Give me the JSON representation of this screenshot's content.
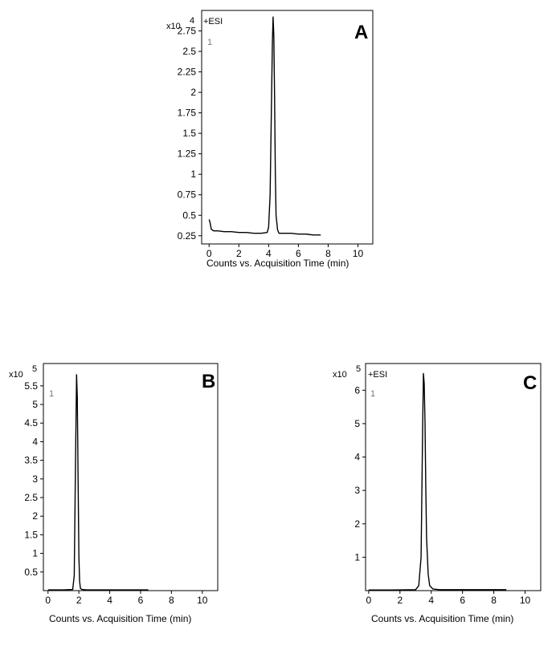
{
  "chart_data": [
    {
      "type": "line",
      "panel": "A",
      "mode_label": "+ESI",
      "scale_base": "x10",
      "scale_exp": "4",
      "trace_label": "1",
      "xlabel": "Counts vs. Acquisition Time (min)",
      "xlim": [
        -0.5,
        11
      ],
      "ylim": [
        0.15,
        3.0
      ],
      "x_ticks": [
        0,
        2,
        4,
        6,
        8,
        10
      ],
      "y_ticks": [
        0.25,
        0.5,
        0.75,
        1,
        1.25,
        1.5,
        1.75,
        2,
        2.25,
        2.5,
        2.75
      ],
      "y_tick_labels": [
        "0.25",
        "0.5",
        "0.75",
        "1",
        "1.25",
        "1.5",
        "1.75",
        "2",
        "2.25",
        "2.5",
        "2.75"
      ],
      "series": [
        {
          "x": [
            0,
            0.05,
            0.15,
            0.3,
            0.6,
            1.0,
            1.5,
            2.0,
            2.5,
            3.0,
            3.5,
            3.9,
            4.0,
            4.1,
            4.2,
            4.25,
            4.3,
            4.35,
            4.4,
            4.45,
            4.5,
            4.6,
            4.7,
            5.0,
            5.5,
            6.0,
            6.5,
            7.0,
            7.5
          ],
          "y": [
            0.45,
            0.42,
            0.33,
            0.31,
            0.31,
            0.3,
            0.3,
            0.29,
            0.29,
            0.28,
            0.28,
            0.29,
            0.35,
            0.75,
            2.0,
            2.6,
            2.92,
            2.7,
            1.9,
            1.0,
            0.5,
            0.32,
            0.28,
            0.28,
            0.28,
            0.27,
            0.27,
            0.26,
            0.26
          ]
        }
      ]
    },
    {
      "type": "line",
      "panel": "B",
      "mode_label": "",
      "scale_base": "x10",
      "scale_exp": "5",
      "trace_label": "1",
      "xlabel": "Counts vs. Acquisition Time (min)",
      "xlim": [
        -0.3,
        11
      ],
      "ylim": [
        0,
        6.1
      ],
      "x_ticks": [
        0,
        2,
        4,
        6,
        8,
        10
      ],
      "y_ticks": [
        0.5,
        1,
        1.5,
        2,
        2.5,
        3,
        3.5,
        4,
        4.5,
        5,
        5.5
      ],
      "y_tick_labels": [
        "0.5",
        "1",
        "1.5",
        "2",
        "2.5",
        "3",
        "3.5",
        "4",
        "4.5",
        "5",
        "5.5"
      ],
      "series": [
        {
          "x": [
            0,
            1.0,
            1.6,
            1.7,
            1.78,
            1.85,
            1.9,
            1.95,
            2.0,
            2.05,
            2.1,
            2.2,
            2.5,
            3.5,
            4.5,
            5.5,
            6.5
          ],
          "y": [
            0.02,
            0.02,
            0.03,
            0.4,
            3.3,
            5.8,
            5.2,
            3.0,
            0.9,
            0.25,
            0.06,
            0.03,
            0.02,
            0.02,
            0.02,
            0.02,
            0.02
          ]
        }
      ]
    },
    {
      "type": "line",
      "panel": "C",
      "mode_label": "+ESI",
      "scale_base": "x10",
      "scale_exp": "5",
      "trace_label": "1",
      "xlabel": "Counts vs. Acquisition Time (min)",
      "xlim": [
        -0.2,
        11
      ],
      "ylim": [
        0,
        6.8
      ],
      "x_ticks": [
        0,
        2,
        4,
        6,
        8,
        10
      ],
      "y_ticks": [
        1,
        2,
        3,
        4,
        5,
        6
      ],
      "y_tick_labels": [
        "1",
        "2",
        "3",
        "4",
        "5",
        "6"
      ],
      "series": [
        {
          "x": [
            0,
            1.5,
            3.0,
            3.2,
            3.35,
            3.45,
            3.5,
            3.55,
            3.6,
            3.65,
            3.7,
            3.8,
            3.9,
            4.1,
            4.5,
            6.0,
            8.8
          ],
          "y": [
            0.02,
            0.02,
            0.03,
            0.15,
            1.0,
            4.8,
            6.5,
            6.2,
            5.0,
            3.2,
            1.6,
            0.5,
            0.15,
            0.05,
            0.03,
            0.03,
            0.03
          ]
        }
      ]
    }
  ]
}
